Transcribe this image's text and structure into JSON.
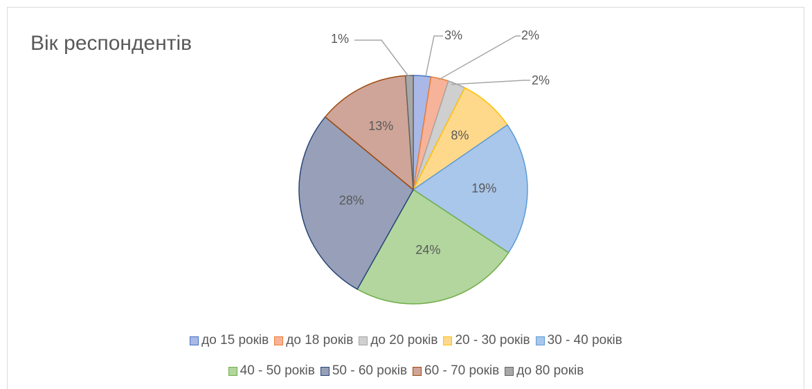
{
  "chart_data": {
    "type": "pie",
    "title": "Вік респондентів",
    "categories": [
      "до 15 років",
      "до 18 років",
      "до 20 років",
      "20 - 30 років",
      "30 - 40 років",
      "40 - 50 років",
      "50 - 60 років",
      "60 - 70 років",
      "до 80 років"
    ],
    "values": [
      2.5,
      2.5,
      2.5,
      8,
      19,
      24,
      28,
      13,
      1.1
    ],
    "labels": [
      "3%",
      "2%",
      "2%",
      "8%",
      "19%",
      "24%",
      "28%",
      "13%",
      "1%"
    ],
    "colors": {
      "fill": [
        "#a9b8e6",
        "#f7b39a",
        "#cfcfcf",
        "#fed98c",
        "#a9c6eb",
        "#b2d69e",
        "#97a0b8",
        "#cea598",
        "#a8a8a8"
      ],
      "stroke": [
        "#4472c4",
        "#ed7d31",
        "#a5a5a5",
        "#ffc000",
        "#5b9bd5",
        "#70ad47",
        "#264478",
        "#9e480e",
        "#636363"
      ]
    },
    "legend_position": "bottom"
  }
}
